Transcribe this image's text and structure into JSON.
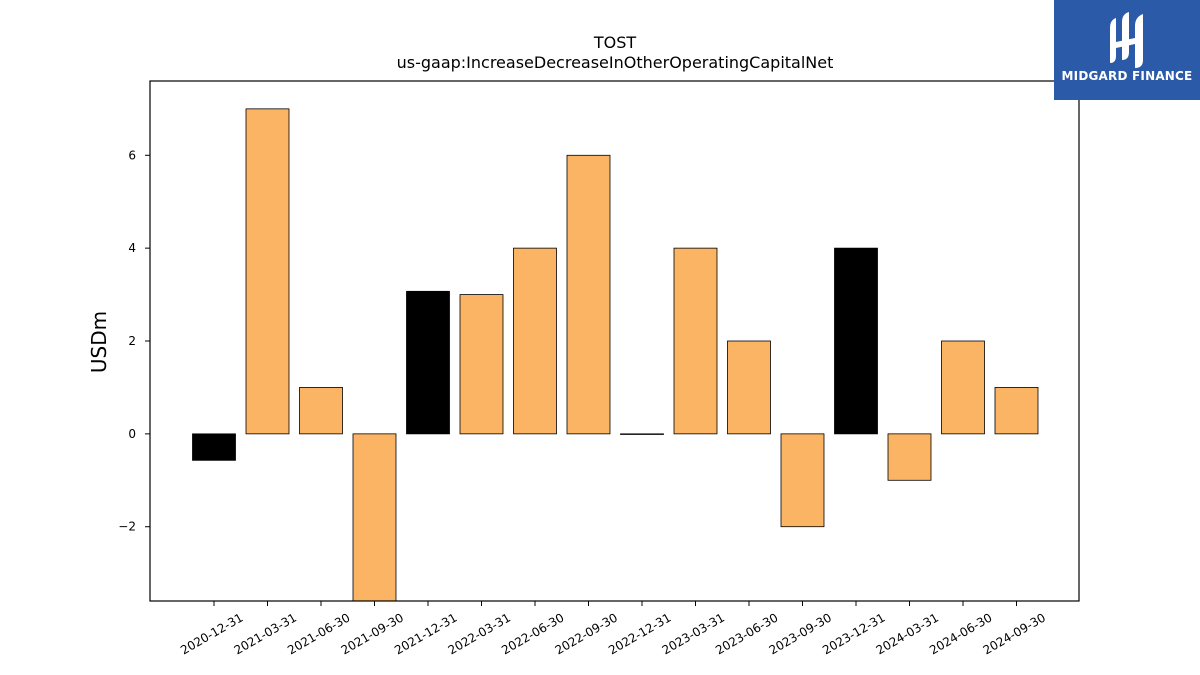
{
  "chart_data": {
    "type": "bar",
    "title": "TOST",
    "subtitle": "us-gaap:IncreaseDecreaseInOtherOperatingCapitalNet",
    "xlabel": "",
    "ylabel": "USDm",
    "ylim": [
      -3.6,
      7.6
    ],
    "yticks": [
      -2,
      0,
      2,
      4,
      6
    ],
    "ytick_labels": [
      "−2",
      "0",
      "2",
      "4",
      "6"
    ],
    "grid": false,
    "categories": [
      "2020-12-31",
      "2021-03-31",
      "2021-06-30",
      "2021-09-30",
      "2021-12-31",
      "2022-03-31",
      "2022-06-30",
      "2022-09-30",
      "2022-12-31",
      "2023-03-31",
      "2023-06-30",
      "2023-09-30",
      "2023-12-31",
      "2024-03-31",
      "2024-06-30",
      "2024-09-30"
    ],
    "values": [
      -0.57,
      7.0,
      1.0,
      -3.6,
      3.07,
      3.0,
      4.0,
      6.0,
      0.0,
      4.0,
      2.0,
      -2.0,
      4.0,
      -1.0,
      2.0,
      1.0
    ],
    "colors": [
      "#000000",
      "#fbb463",
      "#fbb463",
      "#fbb463",
      "#000000",
      "#fbb463",
      "#fbb463",
      "#fbb463",
      "#fbb463",
      "#fbb463",
      "#fbb463",
      "#fbb463",
      "#000000",
      "#fbb463",
      "#fbb463",
      "#fbb463"
    ]
  },
  "logo": {
    "text": "MIDGARD FINANCE",
    "background": "#2b5aa8"
  }
}
